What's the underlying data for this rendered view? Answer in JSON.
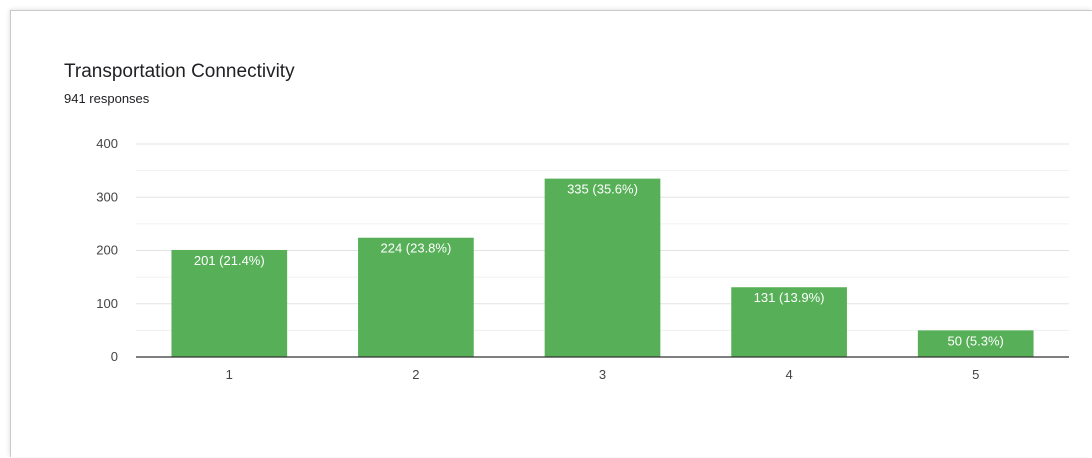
{
  "chart_data": {
    "type": "bar",
    "title": "Transportation Connectivity",
    "subtitle": "941 responses",
    "categories": [
      "1",
      "2",
      "3",
      "4",
      "5"
    ],
    "values": [
      201,
      224,
      335,
      131,
      50
    ],
    "data_labels": [
      "201 (21.4%)",
      "224 (23.8%)",
      "335 (35.6%)",
      "131 (13.9%)",
      "50 (5.3%)"
    ],
    "ylim": [
      0,
      400
    ],
    "yticks": [
      0,
      100,
      200,
      300,
      400
    ],
    "grid": true,
    "legend": "none",
    "bar_color": "#57b058"
  }
}
